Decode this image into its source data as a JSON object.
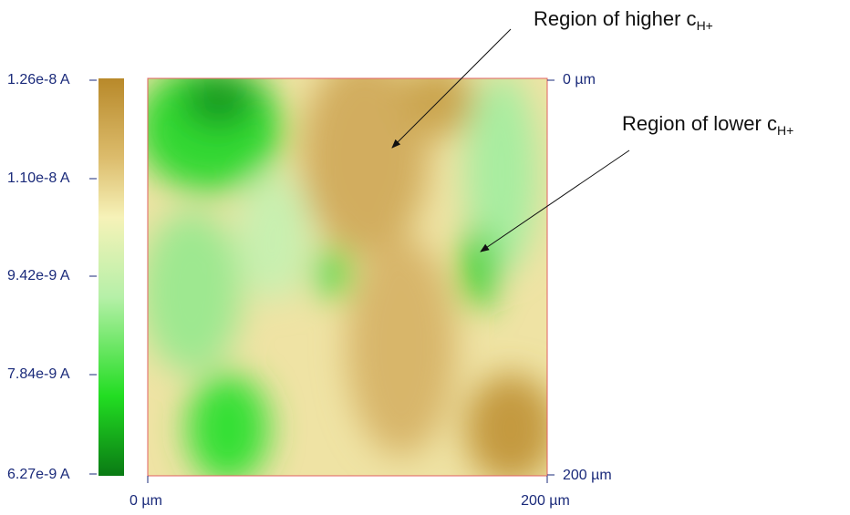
{
  "colorbar": {
    "labels": [
      "1.26e-8 A",
      "1.10e-8 A",
      "9.42e-9 A",
      "7.84e-9 A",
      "6.27e-9 A"
    ]
  },
  "axes": {
    "right_top": "0 µm",
    "right_bottom": "200 µm",
    "bottom_left": "0 µm",
    "bottom_right": "200 µm"
  },
  "annotations": [
    {
      "text": "Region of higher c",
      "subscript": "H+"
    },
    {
      "text": "Region of lower c",
      "subscript": "H+"
    }
  ]
}
